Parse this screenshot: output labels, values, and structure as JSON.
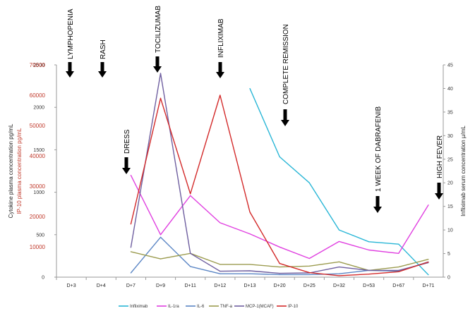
{
  "chart_data": {
    "type": "line",
    "title": "",
    "categories": [
      "D+3",
      "D+4",
      "D+7",
      "D+9",
      "D+11",
      "D+12",
      "D+13",
      "D+20",
      "D+25",
      "D+32",
      "D+53",
      "D+67",
      "D+71"
    ],
    "axes": {
      "cytokine": {
        "label": "Cytokine plasma concentration pg/mL",
        "ylim": [
          0,
          2500
        ],
        "ticks": [
          0,
          500,
          1000,
          1500,
          2000,
          2500
        ]
      },
      "ip10": {
        "label": "IP-10 plasma concentration pg/mL",
        "ylim": [
          0,
          70000
        ],
        "ticks": [
          10000,
          20000,
          30000,
          40000,
          50000,
          60000,
          70000
        ]
      },
      "infliximab": {
        "label": "Infliximab serum concentration µ/mL",
        "ylim": [
          0,
          45
        ],
        "ticks": [
          0,
          5,
          10,
          15,
          20,
          25,
          30,
          35,
          40,
          45
        ]
      }
    },
    "series": [
      {
        "name": "Infliximab",
        "axis": "infliximab",
        "color": "#29b6d6",
        "values": [
          null,
          null,
          null,
          null,
          null,
          null,
          40,
          25.5,
          20,
          10,
          7.5,
          7,
          0.5
        ]
      },
      {
        "name": "IL-1ra",
        "axis": "cytokine",
        "color": "#e040e0",
        "values": [
          null,
          null,
          1200,
          500,
          960,
          640,
          510,
          355,
          220,
          420,
          320,
          280,
          850
        ]
      },
      {
        "name": "IL-6",
        "axis": "cytokine",
        "color": "#5b86c5",
        "values": [
          null,
          null,
          50,
          470,
          125,
          40,
          40,
          30,
          30,
          40,
          80,
          70,
          180
        ]
      },
      {
        "name": "TNF-a",
        "axis": "cytokine",
        "color": "#9c9c50",
        "values": [
          null,
          null,
          300,
          215,
          280,
          150,
          150,
          120,
          130,
          180,
          80,
          120,
          210
        ]
      },
      {
        "name": "MCP-1(MCAF)",
        "axis": "cytokine",
        "color": "#6f5fa0",
        "values": [
          null,
          null,
          350,
          2400,
          280,
          70,
          75,
          45,
          50,
          120,
          80,
          80,
          170
        ]
      },
      {
        "name": "IP-10",
        "axis": "ip10",
        "color": "#d32a2a",
        "values": [
          null,
          null,
          17500,
          59000,
          27500,
          60000,
          21500,
          4500,
          1500,
          500,
          1000,
          1800,
          5000
        ]
      }
    ],
    "events": [
      {
        "label": "LYMPHOPENIA",
        "category": "D+3"
      },
      {
        "label": "RASH",
        "category": "D+4"
      },
      {
        "label": "TOCILIZUMAB",
        "category": "D+9"
      },
      {
        "label": "INFLIXIMAB",
        "category": "D+12"
      },
      {
        "label": "DRESS",
        "category": "D+7"
      },
      {
        "label": "COMPLETE REMISSION",
        "category": "D+20"
      },
      {
        "label": "1 WEEK OF DABRAFENIB",
        "category": "D+53"
      },
      {
        "label": "HIGH FEVER",
        "category": "D+71"
      }
    ],
    "legend": {
      "position": "bottom"
    }
  }
}
